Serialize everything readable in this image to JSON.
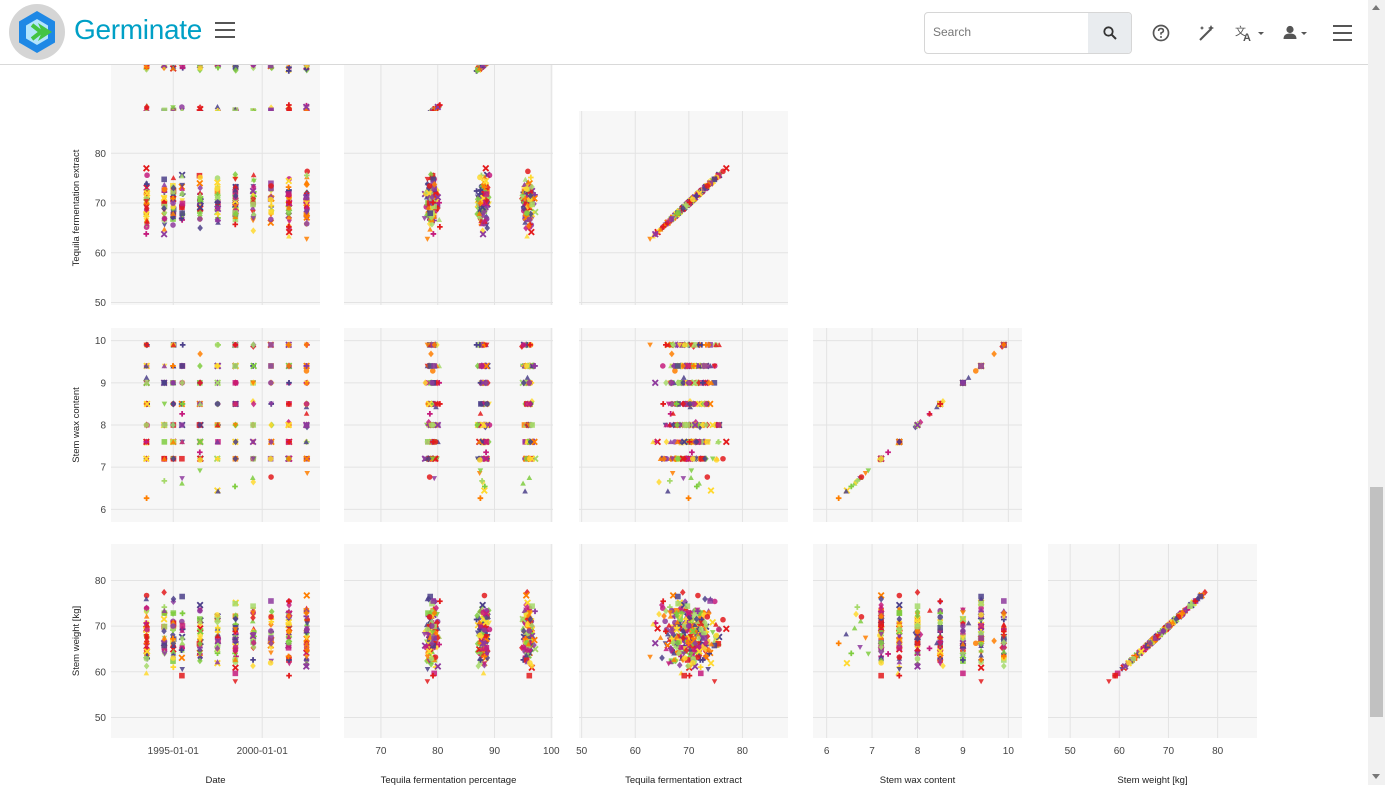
{
  "app": {
    "title": "Germinate"
  },
  "search": {
    "placeholder": "Search"
  },
  "icons": {
    "logo": "germinate-logo-icon",
    "menu": "hamburger-menu-icon",
    "search": "search-icon",
    "help": "help-icon",
    "theme": "theme-toggle-icon",
    "language": "language-icon",
    "user": "user-icon",
    "settings": "settings-menu-icon"
  },
  "colors": {
    "brand": "#00a0c6",
    "series": [
      "#e31a1c",
      "#ff7f00",
      "#ffd92f",
      "#a6d96a",
      "#7fcd3f",
      "#8e3a9d",
      "#c51b7d",
      "#4b3f8a"
    ]
  },
  "chart_data": {
    "type": "scatter",
    "subtype": "scatter-matrix",
    "variables": [
      "Date",
      "Tequila fermentation percentage",
      "Tequila fermentation extract",
      "Stem wax content",
      "Stem weight [kg]"
    ],
    "visible_rows": [
      "Tequila fermentation percentage",
      "Tequila fermentation extract",
      "Stem wax content",
      "Stem weight [kg]"
    ],
    "axis_labels": {
      "y": [
        "",
        "Tequila fermentation extract",
        "Stem wax content",
        "Stem weight [kg]"
      ],
      "x": [
        "Date",
        "Tequila fermentation percentage",
        "Tequila fermentation extract",
        "Stem wax content",
        "Stem weight [kg]"
      ]
    },
    "x_ticks": [
      [
        "1995-01-01",
        "2000-01-01"
      ],
      [
        "70",
        "80",
        "90",
        "100"
      ],
      [
        "50",
        "60",
        "70",
        "80"
      ],
      [
        "6",
        "7",
        "8",
        "9",
        "10"
      ],
      [
        "50",
        "60",
        "70",
        "80"
      ]
    ],
    "y_ticks": [
      [],
      [
        "50",
        "60",
        "70",
        "80"
      ],
      [
        "6",
        "7",
        "8",
        "9",
        "10"
      ],
      [
        "50",
        "60",
        "70",
        "80"
      ]
    ],
    "ranges": {
      "Date": [
        "1991-07-01",
        "2003-04-01"
      ],
      "Tequila fermentation percentage": [
        63.5,
        100.3
      ],
      "Tequila fermentation extract": [
        49.5,
        88.5
      ],
      "Stem wax content": [
        5.7,
        10.3
      ],
      "Stem weight [kg]": [
        45.5,
        88
      ]
    },
    "date_columns": [
      "1993-07-01",
      "1994-07-01",
      "1995-01-01",
      "1995-07-01",
      "1996-07-01",
      "1997-07-01",
      "1998-07-01",
      "1999-07-01",
      "2000-07-01",
      "2001-07-01",
      "2002-07-01"
    ],
    "tequila_percentage_clusters": [
      79,
      88,
      96
    ],
    "wax_content_levels": [
      7.2,
      7.6,
      8.0,
      8.5,
      9.0,
      9.4,
      9.9
    ],
    "grid": true,
    "legend": "none",
    "marker_symbols": [
      "triangle-down",
      "cross-x",
      "triangle-up",
      "square",
      "circle",
      "diamond",
      "diamond",
      "plus"
    ]
  }
}
